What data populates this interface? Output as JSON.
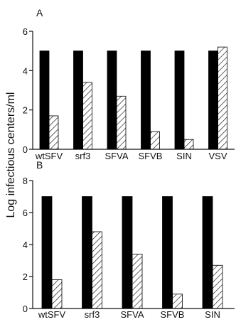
{
  "chart_data": [
    {
      "type": "bar",
      "panel_label": "A",
      "categories": [
        "wtSFV",
        "srf3",
        "SFVA",
        "SFVB",
        "SIN",
        "VSV"
      ],
      "series": [
        {
          "style": "solid-black",
          "values": [
            5.0,
            5.0,
            5.0,
            5.0,
            5.0,
            5.0
          ]
        },
        {
          "style": "hatched",
          "values": [
            1.7,
            3.4,
            2.7,
            0.9,
            0.5,
            5.2
          ]
        }
      ],
      "ylim": [
        0,
        6
      ],
      "yticks": [
        "0",
        "2",
        "4",
        "6"
      ],
      "grid": false
    },
    {
      "type": "bar",
      "panel_label": "B",
      "categories": [
        "wtSFV",
        "srf3",
        "SFVA",
        "SFVB",
        "SIN"
      ],
      "series": [
        {
          "style": "solid-black",
          "values": [
            7.0,
            7.0,
            7.0,
            7.0,
            7.0
          ]
        },
        {
          "style": "hatched",
          "values": [
            1.8,
            4.8,
            3.4,
            0.9,
            2.7
          ]
        }
      ],
      "ylim": [
        0,
        8
      ],
      "yticks": [
        "0",
        "2",
        "4",
        "6",
        "8"
      ],
      "grid": false
    }
  ],
  "shared_ylabel": "Log infectious centers/ml",
  "colors": {
    "solid": "#000000",
    "hatch": "#222222",
    "axis": "#111111"
  }
}
